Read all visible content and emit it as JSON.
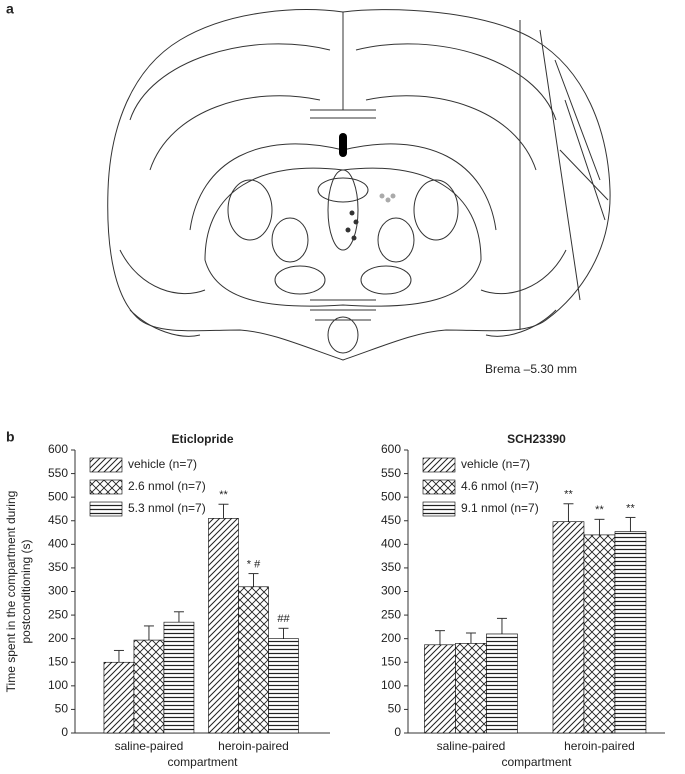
{
  "panel_labels": [
    "a",
    "b"
  ],
  "diagram_caption": "Brema –5.30 mm",
  "chart_data": [
    {
      "type": "bar",
      "title": "Eticlopride",
      "ylabel": [
        "Time spent in the compartment during",
        "postconditioning (s)"
      ],
      "xlabel": "compartment",
      "categories": [
        "saline-paired",
        "heroin-paired"
      ],
      "series": [
        {
          "name": "vehicle (n=7)",
          "pattern": "diagonal",
          "color": "#000000",
          "values": [
            150,
            455
          ],
          "errors": [
            25,
            30
          ],
          "annotations": [
            null,
            "**"
          ]
        },
        {
          "name": "2.6 nmol (n=7)",
          "pattern": "cross",
          "color": "#000000",
          "values": [
            197,
            310
          ],
          "errors": [
            30,
            28
          ],
          "annotations": [
            null,
            "* #"
          ]
        },
        {
          "name": "5.3 nmol (n=7)",
          "pattern": "horizontal",
          "color": "#000000",
          "values": [
            235,
            200
          ],
          "errors": [
            22,
            22
          ],
          "annotations": [
            null,
            "##"
          ]
        }
      ],
      "ylim": [
        0,
        600
      ],
      "yticks": [
        0,
        50,
        100,
        150,
        200,
        250,
        300,
        350,
        400,
        450,
        500,
        550,
        600
      ]
    },
    {
      "type": "bar",
      "title": "SCH23390",
      "xlabel": "compartment",
      "categories": [
        "saline-paired",
        "heroin-paired"
      ],
      "series": [
        {
          "name": "vehicle (n=7)",
          "pattern": "diagonal",
          "color": "#000000",
          "values": [
            187,
            448
          ],
          "errors": [
            30,
            38
          ],
          "annotations": [
            null,
            "**"
          ]
        },
        {
          "name": "4.6 nmol (n=7)",
          "pattern": "cross",
          "color": "#000000",
          "values": [
            190,
            420
          ],
          "errors": [
            22,
            33
          ],
          "annotations": [
            null,
            "**"
          ]
        },
        {
          "name": "9.1 nmol (n=7)",
          "pattern": "horizontal",
          "color": "#000000",
          "values": [
            210,
            427
          ],
          "errors": [
            33,
            30
          ],
          "annotations": [
            null,
            "**"
          ]
        }
      ],
      "ylim": [
        0,
        600
      ],
      "yticks": [
        0,
        50,
        100,
        150,
        200,
        250,
        300,
        350,
        400,
        450,
        500,
        550,
        600
      ]
    }
  ]
}
